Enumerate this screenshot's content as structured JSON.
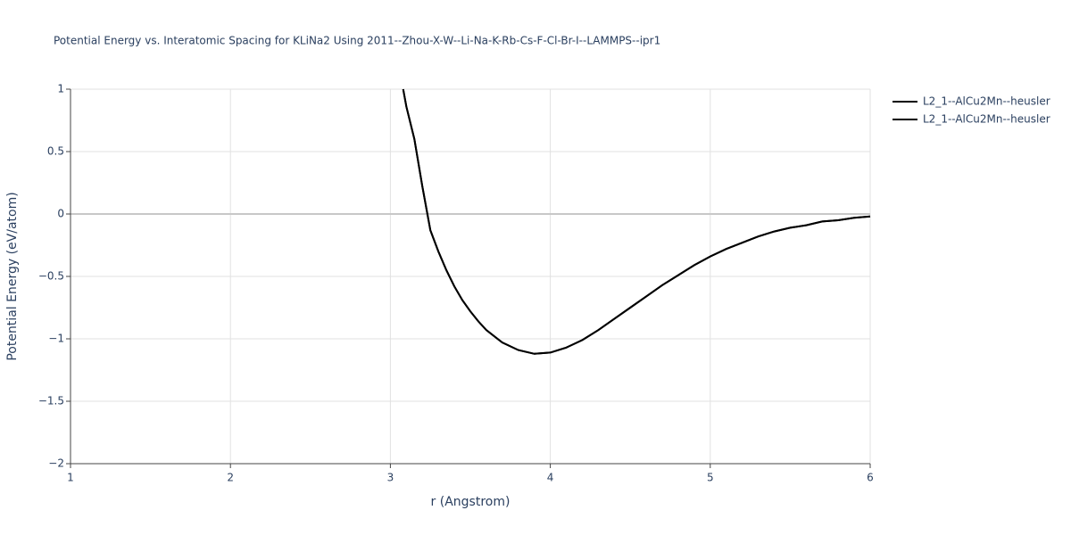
{
  "chart_data": {
    "type": "line",
    "title": "Potential Energy vs. Interatomic Spacing for KLiNa2 Using 2011--Zhou-X-W--Li-Na-K-Rb-Cs-F-Cl-Br-I--LAMMPS--ipr1",
    "x_label": "r (Angstrom)",
    "y_label": "Potential Energy (eV/atom)",
    "x": [
      3.08,
      3.1,
      3.15,
      3.2,
      3.25,
      3.3,
      3.35,
      3.4,
      3.45,
      3.5,
      3.55,
      3.6,
      3.7,
      3.8,
      3.9,
      4.0,
      4.1,
      4.2,
      4.3,
      4.4,
      4.5,
      4.6,
      4.7,
      4.8,
      4.9,
      5.0,
      5.1,
      5.2,
      5.3,
      5.4,
      5.5,
      5.6,
      5.7,
      5.8,
      5.9,
      6.0
    ],
    "series": [
      {
        "name": "L2_1--AlCu2Mn--heusler",
        "color": "#000000",
        "values": [
          1.0,
          0.86,
          0.6,
          0.22,
          -0.13,
          -0.3,
          -0.45,
          -0.58,
          -0.69,
          -0.78,
          -0.86,
          -0.93,
          -1.03,
          -1.09,
          -1.12,
          -1.11,
          -1.07,
          -1.01,
          -0.93,
          -0.84,
          -0.75,
          -0.66,
          -0.57,
          -0.49,
          -0.41,
          -0.34,
          -0.28,
          -0.23,
          -0.18,
          -0.14,
          -0.11,
          -0.09,
          -0.06,
          -0.05,
          -0.03,
          -0.02
        ]
      },
      {
        "name": "L2_1--AlCu2Mn--heusler",
        "color": "#000000",
        "values": [
          1.0,
          0.86,
          0.6,
          0.22,
          -0.13,
          -0.3,
          -0.45,
          -0.58,
          -0.69,
          -0.78,
          -0.86,
          -0.93,
          -1.03,
          -1.09,
          -1.12,
          -1.11,
          -1.07,
          -1.01,
          -0.93,
          -0.84,
          -0.75,
          -0.66,
          -0.57,
          -0.49,
          -0.41,
          -0.34,
          -0.28,
          -0.23,
          -0.18,
          -0.14,
          -0.11,
          -0.09,
          -0.06,
          -0.05,
          -0.03,
          -0.02
        ]
      }
    ],
    "xlim": [
      1,
      6
    ],
    "xticks": [
      1,
      2,
      3,
      4,
      5,
      6
    ],
    "ylim": [
      -2,
      1
    ],
    "yticks": [
      {
        "value": -2,
        "label": "−2"
      },
      {
        "value": -1.5,
        "label": "−1.5"
      },
      {
        "value": -1,
        "label": "−1"
      },
      {
        "value": -0.5,
        "label": "−0.5"
      },
      0,
      0.5,
      1
    ],
    "grid": true,
    "legend": "top-right"
  }
}
